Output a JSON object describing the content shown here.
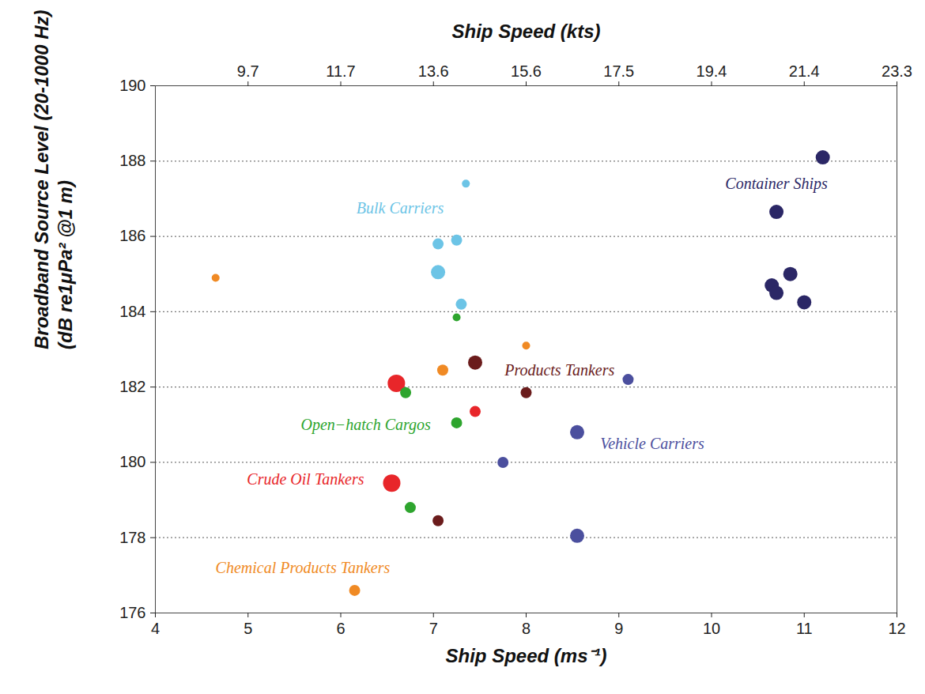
{
  "chart_data": {
    "type": "scatter",
    "x2label": "Ship Speed (kts)",
    "xlabel": "Ship Speed (ms⁻¹)",
    "ylabel": [
      "Broadband Source Level (20-1000 Hz)",
      "(dB re1μPa² @1 m)"
    ],
    "xlim": [
      4,
      12
    ],
    "xticks": [
      4,
      5,
      6,
      7,
      8,
      9,
      10,
      11,
      12
    ],
    "x2ticks": [
      {
        "value": 5,
        "label": "9.7"
      },
      {
        "value": 6,
        "label": "11.7"
      },
      {
        "value": 7,
        "label": "13.6"
      },
      {
        "value": 8,
        "label": "15.6"
      },
      {
        "value": 9,
        "label": "17.5"
      },
      {
        "value": 10,
        "label": "19.4"
      },
      {
        "value": 11,
        "label": "21.4"
      },
      {
        "value": 12,
        "label": "23.3"
      }
    ],
    "ylim": [
      176,
      190
    ],
    "yticks": [
      176,
      178,
      180,
      182,
      184,
      186,
      188,
      190
    ],
    "grid": true,
    "series": [
      {
        "name": "Bulk Carriers",
        "color": "#6cc4e6",
        "x": [
          7.35,
          7.05,
          7.25,
          7.05,
          7.3
        ],
        "y": [
          187.4,
          185.8,
          185.9,
          185.05,
          184.2
        ],
        "sizes": [
          1,
          2,
          2,
          3,
          2
        ],
        "label_position": [
          6.64,
          186.75
        ]
      },
      {
        "name": "Container Ships",
        "color": "#2b2766",
        "x": [
          11.2,
          10.7,
          10.65,
          10.7,
          10.85,
          11.0
        ],
        "y": [
          188.1,
          186.65,
          184.7,
          184.5,
          185.0,
          184.25
        ],
        "sizes": [
          3,
          3,
          3,
          3,
          3,
          3
        ],
        "label_position": [
          10.7,
          187.4
        ]
      },
      {
        "name": "Vehicle Carriers",
        "color": "#4b4f9e",
        "x": [
          9.1,
          8.55,
          7.75,
          8.55
        ],
        "y": [
          182.2,
          180.8,
          180.0,
          178.05
        ],
        "sizes": [
          2,
          3,
          2,
          3
        ],
        "label_position": [
          9.36,
          180.5
        ]
      },
      {
        "name": "Products Tankers",
        "color": "#6b1c1c",
        "x": [
          7.45,
          8.0,
          7.05
        ],
        "y": [
          182.65,
          181.85,
          178.45
        ],
        "sizes": [
          3,
          2,
          2
        ],
        "label_position": [
          8.36,
          182.45
        ]
      },
      {
        "name": "Crude Oil Tankers",
        "color": "#e8262a",
        "x": [
          6.6,
          7.45,
          6.55
        ],
        "y": [
          182.1,
          181.35,
          179.45
        ],
        "sizes": [
          4,
          2,
          4
        ],
        "label_position": [
          5.62,
          179.55
        ]
      },
      {
        "name": "Open−hatch Cargos",
        "color": "#2ea52e",
        "x": [
          7.25,
          6.7,
          7.25,
          6.75
        ],
        "y": [
          183.85,
          181.85,
          181.05,
          178.8
        ],
        "sizes": [
          1,
          2,
          2,
          2
        ],
        "label_position": [
          6.27,
          181.0
        ]
      },
      {
        "name": "Chemical Products Tankers",
        "color": "#f08a24",
        "x": [
          4.65,
          8.0,
          7.1,
          6.15
        ],
        "y": [
          184.9,
          183.1,
          182.45,
          176.6
        ],
        "sizes": [
          1,
          1,
          2,
          2
        ],
        "label_position": [
          5.59,
          177.2
        ]
      }
    ]
  }
}
